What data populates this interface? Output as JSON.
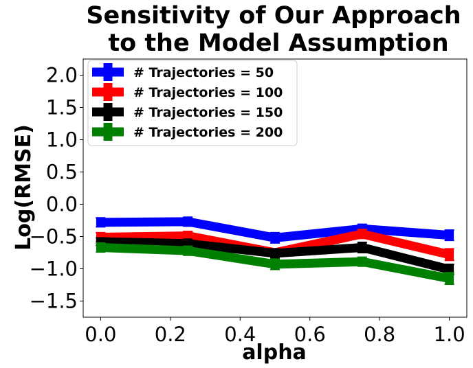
{
  "chart_data": {
    "type": "line",
    "title_lines": [
      "Sensitivity of Our Approach",
      "to the Model Assumption"
    ],
    "xlabel": "alpha",
    "ylabel": "Log(RMSE)",
    "xlim": [
      -0.05,
      1.05
    ],
    "ylim": [
      -1.75,
      2.25
    ],
    "x_ticks": [
      0.0,
      0.2,
      0.4,
      0.6,
      0.8,
      1.0
    ],
    "x_tick_labels": [
      "0.0",
      "0.2",
      "0.4",
      "0.6",
      "0.8",
      "1.0"
    ],
    "y_ticks": [
      2.0,
      1.5,
      1.0,
      0.5,
      0.0,
      -0.5,
      -1.0,
      -1.5
    ],
    "y_tick_labels": [
      "2.0",
      "1.5",
      "1.0",
      "0.5",
      "0.0",
      "−0.5",
      "−1.0",
      "−1.5"
    ],
    "x": [
      0.0,
      0.25,
      0.5,
      0.75,
      1.0
    ],
    "legend_position": "upper-left",
    "grid": false,
    "series": [
      {
        "name": "# Trajectories = 50",
        "color": "#0000ff",
        "values": [
          -0.28,
          -0.27,
          -0.52,
          -0.38,
          -0.48
        ],
        "err": [
          0.07,
          0.07,
          0.08,
          0.07,
          0.08
        ]
      },
      {
        "name": "# Trajectories = 100",
        "color": "#ff0000",
        "values": [
          -0.51,
          -0.49,
          -0.75,
          -0.46,
          -0.78
        ],
        "err": [
          0.07,
          0.07,
          0.06,
          0.07,
          0.09
        ]
      },
      {
        "name": "# Trajectories = 150",
        "color": "#000000",
        "values": [
          -0.58,
          -0.61,
          -0.76,
          -0.67,
          -1.01
        ],
        "err": [
          0.06,
          0.07,
          0.07,
          0.08,
          0.08
        ]
      },
      {
        "name": "# Trajectories = 200",
        "color": "#008000",
        "values": [
          -0.67,
          -0.72,
          -0.93,
          -0.89,
          -1.15
        ],
        "err": [
          0.07,
          0.07,
          0.08,
          0.07,
          0.09
        ]
      }
    ]
  }
}
